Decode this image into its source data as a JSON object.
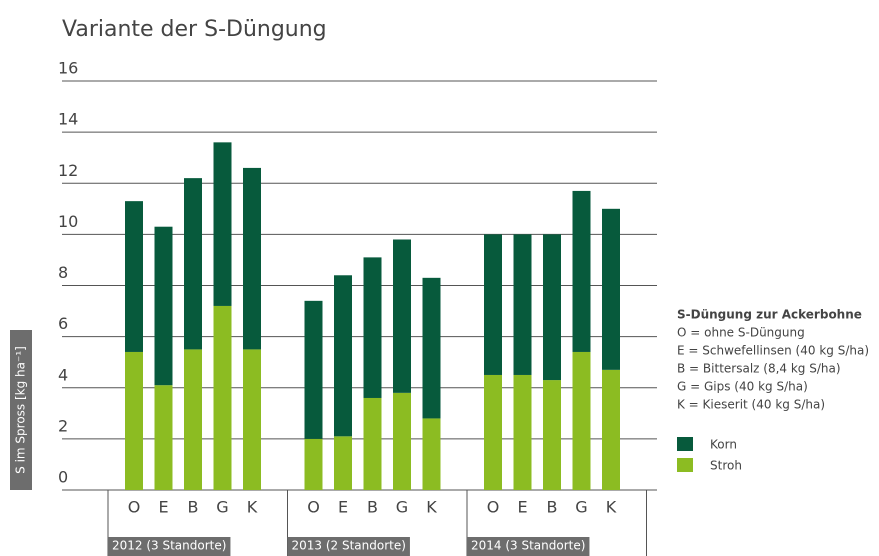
{
  "chart_data": {
    "type": "stacked-bar",
    "title": "Variante der S-Düngung",
    "y_label": "S im Spross [kg ha⁻¹]",
    "ylim": [
      0,
      16
    ],
    "yticks": [
      0,
      2,
      4,
      6,
      8,
      10,
      12,
      14,
      16
    ],
    "grid": true,
    "groups": [
      {
        "label": "2012 (3 Standorte)",
        "categories": [
          "O",
          "E",
          "B",
          "G",
          "K"
        ]
      },
      {
        "label": "2013 (2 Standorte)",
        "categories": [
          "O",
          "E",
          "B",
          "G",
          "K"
        ]
      },
      {
        "label": "2014 (3 Standorte)",
        "categories": [
          "O",
          "E",
          "B",
          "G",
          "K"
        ]
      }
    ],
    "series": [
      {
        "name": "Stroh",
        "color": "#8cbc22",
        "values": [
          5.4,
          4.1,
          5.5,
          7.2,
          5.5,
          2.0,
          2.1,
          3.6,
          3.8,
          2.8,
          4.5,
          4.5,
          4.3,
          5.4,
          4.7
        ]
      },
      {
        "name": "Korn",
        "color": "#075a3c",
        "values": [
          5.9,
          6.2,
          6.7,
          6.4,
          7.1,
          5.4,
          6.3,
          5.5,
          6.0,
          5.5,
          5.5,
          5.5,
          5.7,
          6.3,
          6.3
        ]
      }
    ],
    "legend_title": "S-Düngung zur Ackerbohne",
    "legend_notes": [
      "O = ohne S-Düngung",
      "E = Schwefellinsen (40 kg S/ha)",
      "B = Bittersalz (8,4 kg S/ha)",
      "G = Gips (40 kg S/ha)",
      "K = Kieserit (40 kg S/ha)"
    ]
  }
}
